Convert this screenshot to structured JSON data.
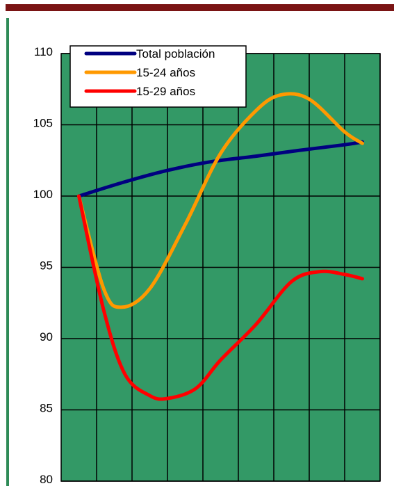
{
  "chart_data": {
    "type": "line",
    "x": [
      0,
      1,
      2,
      3,
      4,
      5,
      6,
      7,
      8,
      9
    ],
    "ylim": [
      80,
      110
    ],
    "yticks": [
      110,
      105,
      100,
      95,
      90,
      85,
      80
    ],
    "xlabel": "",
    "ylabel": "",
    "grid": true,
    "legend_position": "top-left",
    "plot_background": "#339966",
    "series": [
      {
        "name": "Total población",
        "color": "#000080",
        "points": [
          [
            0.5,
            100
          ],
          [
            1.8,
            101.0
          ],
          [
            3.0,
            101.8
          ],
          [
            4.2,
            102.4
          ],
          [
            5.5,
            102.8
          ],
          [
            6.7,
            103.2
          ],
          [
            8.0,
            103.6
          ],
          [
            8.5,
            103.8
          ]
        ]
      },
      {
        "name": "15-24 años",
        "color": "#ff9900",
        "points": [
          [
            0.5,
            100
          ],
          [
            1.2,
            93.5
          ],
          [
            1.7,
            92.2
          ],
          [
            2.5,
            93.5
          ],
          [
            3.5,
            98.0
          ],
          [
            4.5,
            103.0
          ],
          [
            5.5,
            106.0
          ],
          [
            6.2,
            107.1
          ],
          [
            7.0,
            106.8
          ],
          [
            8.0,
            104.5
          ],
          [
            8.5,
            103.7
          ]
        ]
      },
      {
        "name": "15-29 años",
        "color": "#ff0000",
        "points": [
          [
            0.5,
            100
          ],
          [
            1.2,
            92.0
          ],
          [
            1.8,
            87.5
          ],
          [
            2.5,
            86.0
          ],
          [
            3.0,
            85.8
          ],
          [
            3.8,
            86.5
          ],
          [
            4.5,
            88.5
          ],
          [
            5.5,
            91.0
          ],
          [
            6.5,
            94.0
          ],
          [
            7.3,
            94.7
          ],
          [
            8.0,
            94.5
          ],
          [
            8.5,
            94.2
          ]
        ]
      }
    ]
  }
}
